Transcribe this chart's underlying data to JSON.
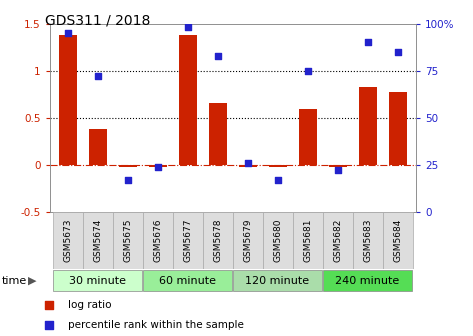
{
  "title": "GDS311 / 2018",
  "samples": [
    "GSM5673",
    "GSM5674",
    "GSM5675",
    "GSM5676",
    "GSM5677",
    "GSM5678",
    "GSM5679",
    "GSM5680",
    "GSM5681",
    "GSM5682",
    "GSM5683",
    "GSM5684"
  ],
  "log_ratio": [
    1.38,
    0.38,
    -0.02,
    -0.03,
    1.38,
    0.65,
    -0.02,
    -0.03,
    0.59,
    -0.02,
    0.83,
    0.77
  ],
  "percentile_rank": [
    95,
    72,
    17,
    24,
    98,
    83,
    26,
    17,
    75,
    22,
    90,
    85
  ],
  "groups": [
    {
      "label": "30 minute",
      "start": 0,
      "end": 3,
      "color": "#ccffcc"
    },
    {
      "label": "60 minute",
      "start": 3,
      "end": 6,
      "color": "#99ee99"
    },
    {
      "label": "120 minute",
      "start": 6,
      "end": 9,
      "color": "#aaddaa"
    },
    {
      "label": "240 minute",
      "start": 9,
      "end": 12,
      "color": "#55dd55"
    }
  ],
  "bar_color": "#cc2200",
  "dot_color": "#2222cc",
  "ylim_left": [
    -0.5,
    1.5
  ],
  "ylim_right": [
    0,
    100
  ],
  "yticks_left": [
    -0.5,
    0,
    0.5,
    1.0,
    1.5
  ],
  "yticks_right": [
    0,
    25,
    50,
    75,
    100
  ],
  "ytick_labels_left": [
    "-0.5",
    "0",
    "0.5",
    "1",
    "1.5"
  ],
  "ytick_labels_right": [
    "0",
    "25",
    "50",
    "75",
    "100%"
  ],
  "hlines": [
    0.5,
    1.0
  ],
  "zero_line": 0.0,
  "sample_area_color": "#dddddd",
  "time_label": "time",
  "legend_items": [
    {
      "label": "log ratio",
      "color": "#cc2200",
      "marker": "s"
    },
    {
      "label": "percentile rank within the sample",
      "color": "#2222cc",
      "marker": "s"
    }
  ]
}
